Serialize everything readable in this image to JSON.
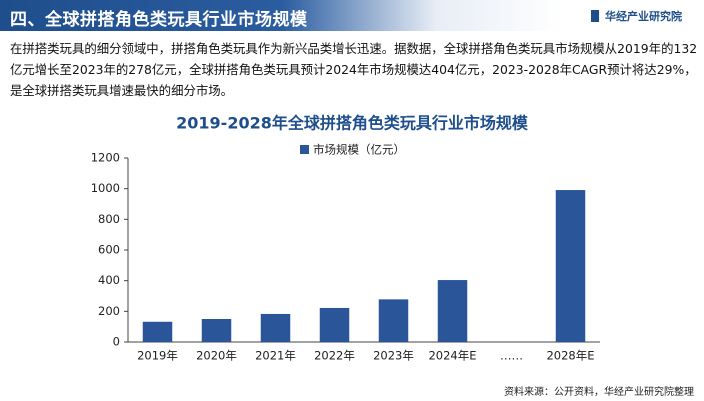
{
  "header": {
    "title": "四、全球拼搭角色类玩具行业市场规模",
    "logo": "华经产业研究院"
  },
  "paragraph": "在拼搭类玩具的细分领域中，拼搭角色类玩具作为新兴品类增长迅速。据数据，全球拼搭角色类玩具市场规模从2019年的132亿元增长至2023年的278亿元，全球拼搭角色类玩具预计2024年市场规模达404亿元，2023-2028年CAGR预计将达29%，是全球拼搭类玩具增速最快的细分市场。",
  "source": "资料来源：公开资料，华经产业研究院整理",
  "chart_data": {
    "type": "bar",
    "title": "2019-2028年全球拼搭角色类玩具行业市场规模",
    "categories": [
      "2019年",
      "2020年",
      "2021年",
      "2022年",
      "2023年",
      "2024年E",
      "……",
      "2028年E"
    ],
    "series": [
      {
        "name": "市场规模（亿元）",
        "color": "#2a5699",
        "values": [
          132,
          150,
          183,
          222,
          278,
          404,
          null,
          991
        ]
      }
    ],
    "ylim": [
      0,
      1200
    ],
    "yticks": [
      0,
      200,
      400,
      600,
      800,
      1000,
      1200
    ],
    "legend": "top"
  }
}
